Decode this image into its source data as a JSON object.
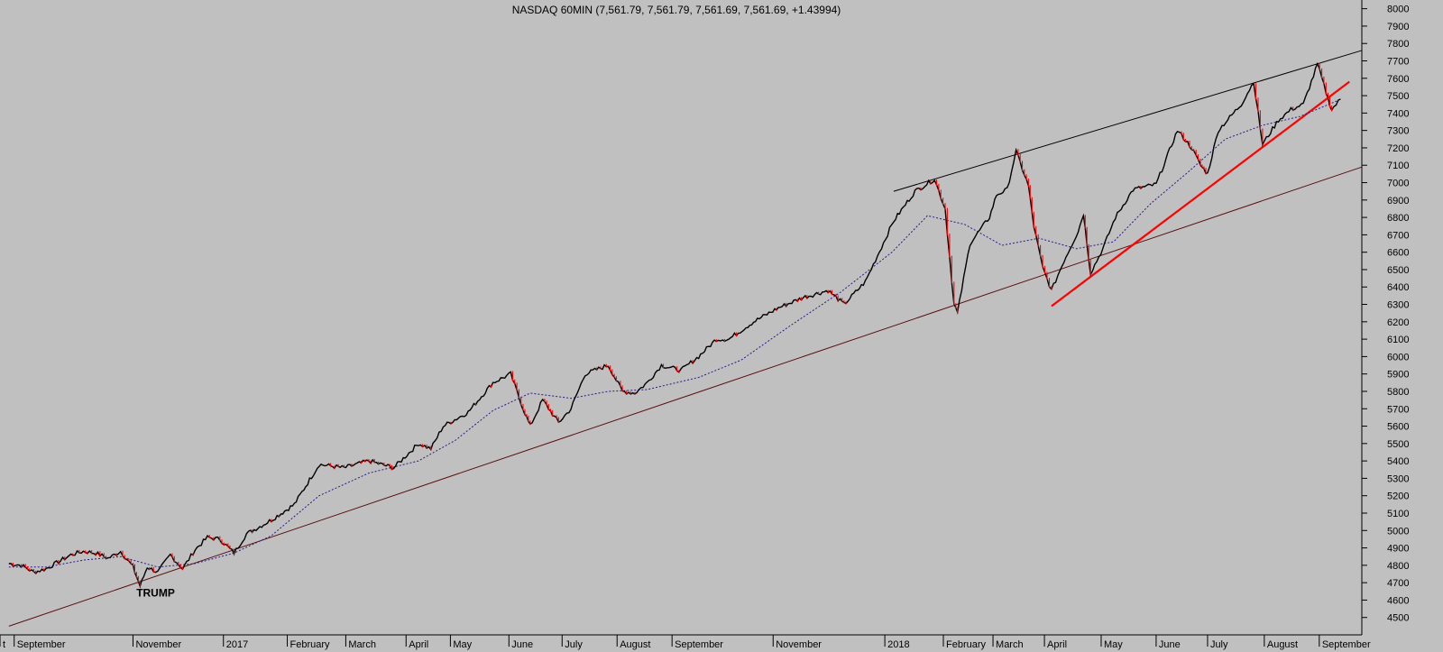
{
  "chart_data": {
    "type": "line",
    "title": "NASDAQ 60MIN (7,561.79, 7,561.79, 7,561.69, 7,561.69, +1.43994)",
    "xlabel": "",
    "ylabel": "",
    "ylim": [
      4400,
      8050
    ],
    "y_ticks": [
      4500,
      4600,
      4700,
      4800,
      4900,
      5000,
      5100,
      5200,
      5300,
      5400,
      5500,
      5600,
      5700,
      5800,
      5900,
      6000,
      6100,
      6200,
      6300,
      6400,
      6500,
      6600,
      6700,
      6800,
      6900,
      7000,
      7100,
      7200,
      7300,
      7400,
      7500,
      7600,
      7700,
      7800,
      7900,
      8000
    ],
    "x_tick_labels": [
      "t",
      "September",
      "November",
      "2017",
      "February",
      "March",
      "April",
      "May",
      "June",
      "July",
      "August",
      "September",
      "November",
      "2018",
      "February",
      "March",
      "April",
      "May",
      "June",
      "July",
      "August",
      "September"
    ],
    "grid": false,
    "legend": "none",
    "colors": {
      "background": "#c0c0c0",
      "price_up": "#000000",
      "price_down": "#ff0000",
      "moving_average": "#2a1a8a",
      "long_trendline": "#5a1010",
      "upper_trendline": "#000000",
      "short_trendline": "#ff0000"
    },
    "series": [
      {
        "role": "price",
        "x": [
          "2016-08-22",
          "2016-08-29",
          "2016-09-05",
          "2016-09-12",
          "2016-09-19",
          "2016-09-26",
          "2016-10-03",
          "2016-10-10",
          "2016-10-17",
          "2016-10-24",
          "2016-10-31",
          "2016-11-04",
          "2016-11-08",
          "2016-11-14",
          "2016-11-21",
          "2016-11-28",
          "2016-12-05",
          "2016-12-12",
          "2016-12-19",
          "2016-12-27",
          "2017-01-03",
          "2017-01-17",
          "2017-01-30",
          "2017-02-13",
          "2017-02-27",
          "2017-03-13",
          "2017-03-27",
          "2017-04-10",
          "2017-04-17",
          "2017-04-24",
          "2017-05-08",
          "2017-05-22",
          "2017-06-01",
          "2017-06-08",
          "2017-06-12",
          "2017-06-19",
          "2017-06-28",
          "2017-07-05",
          "2017-07-13",
          "2017-07-26",
          "2017-08-03",
          "2017-08-10",
          "2017-08-17",
          "2017-08-25",
          "2017-09-05",
          "2017-09-15",
          "2017-09-25",
          "2017-10-02",
          "2017-10-16",
          "2017-10-30",
          "2017-11-13",
          "2017-11-27",
          "2017-12-06",
          "2017-12-18",
          "2018-01-03",
          "2018-01-15",
          "2018-01-26",
          "2018-02-01",
          "2018-02-06",
          "2018-02-08",
          "2018-02-15",
          "2018-02-26",
          "2018-03-02",
          "2018-03-08",
          "2018-03-13",
          "2018-03-20",
          "2018-03-23",
          "2018-03-28",
          "2018-04-02",
          "2018-04-09",
          "2018-04-17",
          "2018-04-20",
          "2018-04-24",
          "2018-05-01",
          "2018-05-08",
          "2018-05-18",
          "2018-05-31",
          "2018-06-12",
          "2018-06-20",
          "2018-06-25",
          "2018-06-29",
          "2018-07-05",
          "2018-07-18",
          "2018-07-25",
          "2018-07-30",
          "2018-08-08",
          "2018-08-15",
          "2018-08-22",
          "2018-08-30",
          "2018-09-05",
          "2018-09-07",
          "2018-09-12"
        ],
        "values": [
          4810,
          4800,
          4760,
          4780,
          4820,
          4860,
          4880,
          4870,
          4840,
          4880,
          4790,
          4680,
          4790,
          4760,
          4860,
          4780,
          4890,
          4960,
          4950,
          4870,
          4980,
          5060,
          5150,
          5380,
          5360,
          5400,
          5360,
          5500,
          5470,
          5600,
          5680,
          5850,
          5900,
          5700,
          5600,
          5750,
          5620,
          5700,
          5900,
          5950,
          5800,
          5790,
          5850,
          5950,
          5920,
          6000,
          6100,
          6100,
          6200,
          6280,
          6340,
          6380,
          6300,
          6430,
          6780,
          6950,
          7020,
          6850,
          6300,
          6250,
          6650,
          6800,
          6930,
          6960,
          7180,
          6980,
          6750,
          6510,
          6380,
          6550,
          6720,
          6820,
          6480,
          6620,
          6800,
          6960,
          6990,
          7300,
          7200,
          7100,
          7050,
          7300,
          7450,
          7580,
          7220,
          7360,
          7420,
          7450,
          7680,
          7480,
          7420,
          7480
        ]
      },
      {
        "role": "moving_average",
        "x": [
          "2016-08-22",
          "2016-09-12",
          "2016-10-03",
          "2016-10-24",
          "2016-11-14",
          "2016-12-05",
          "2016-12-27",
          "2017-01-17",
          "2017-02-13",
          "2017-03-13",
          "2017-04-10",
          "2017-05-01",
          "2017-05-22",
          "2017-06-12",
          "2017-07-05",
          "2017-07-26",
          "2017-08-17",
          "2017-09-15",
          "2017-10-09",
          "2017-11-06",
          "2017-12-04",
          "2018-01-02",
          "2018-01-22",
          "2018-02-12",
          "2018-03-05",
          "2018-03-26",
          "2018-04-16",
          "2018-05-07",
          "2018-05-28",
          "2018-06-18",
          "2018-07-09",
          "2018-07-30",
          "2018-08-20",
          "2018-09-10"
        ],
        "values": [
          4790,
          4790,
          4830,
          4850,
          4790,
          4810,
          4870,
          4970,
          5200,
          5330,
          5400,
          5520,
          5690,
          5790,
          5760,
          5800,
          5810,
          5880,
          5980,
          6180,
          6370,
          6600,
          6810,
          6760,
          6640,
          6680,
          6620,
          6660,
          6880,
          7060,
          7250,
          7330,
          7380,
          7470
        ]
      }
    ],
    "trendlines": [
      {
        "role": "long_support",
        "from": [
          "2016-08-22",
          4450
        ],
        "to": [
          "2018-09-24",
          7090
        ]
      },
      {
        "role": "upper_resistance",
        "from": [
          "2018-01-03",
          6950
        ],
        "to": [
          "2018-09-24",
          7760
        ]
      },
      {
        "role": "short_support",
        "from": [
          "2018-04-02",
          6290
        ],
        "to": [
          "2018-09-17",
          7580
        ]
      }
    ],
    "annotations": [
      {
        "text": "TRUMP",
        "x": "2016-11-08",
        "y": 4620
      }
    ]
  }
}
